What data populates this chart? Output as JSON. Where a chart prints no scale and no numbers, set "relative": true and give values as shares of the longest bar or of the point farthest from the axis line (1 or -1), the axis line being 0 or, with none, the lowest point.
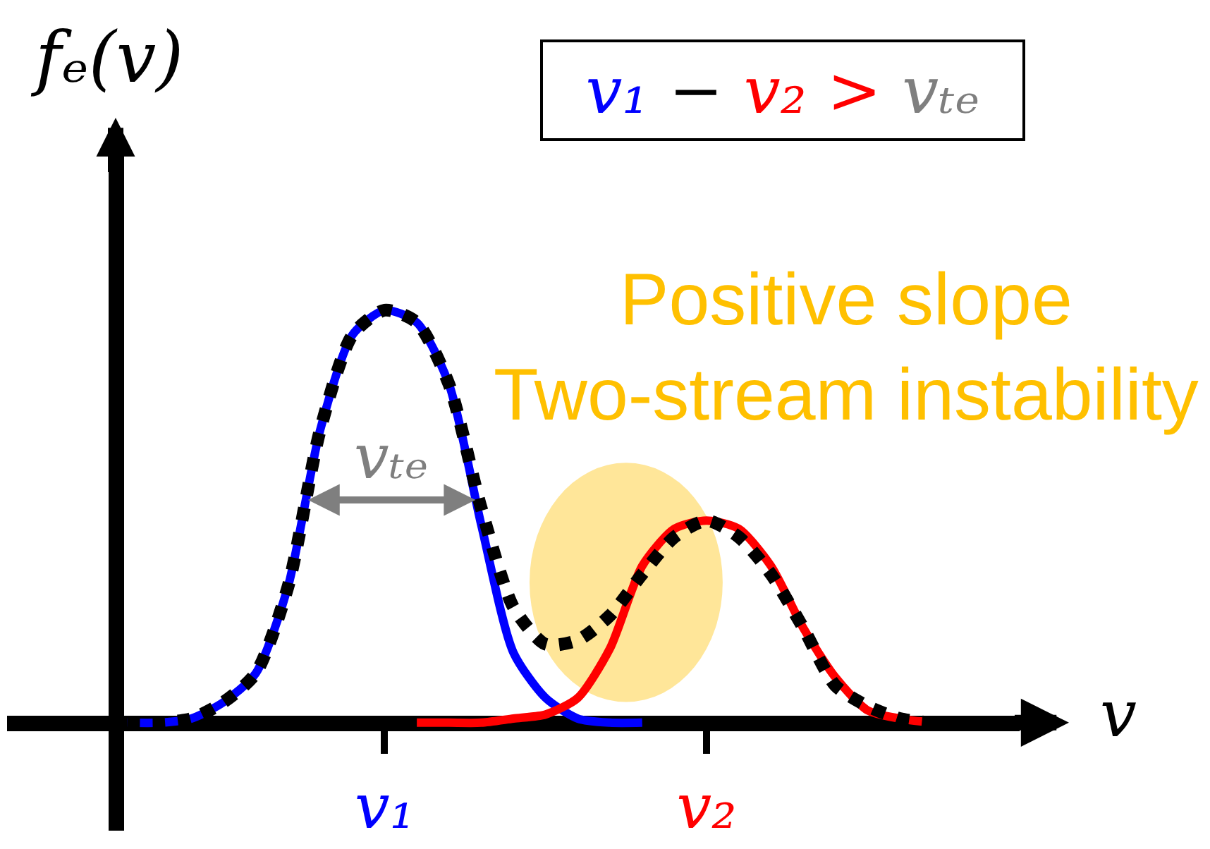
{
  "chart_data": {
    "type": "line",
    "relative": true,
    "legend": false,
    "grid": false,
    "categories": [
      null,
      null,
      null,
      null,
      null,
      null,
      null,
      null,
      "v₁",
      null,
      null,
      null,
      null,
      null,
      null,
      null,
      null,
      null,
      "v₂",
      null,
      null,
      null,
      null,
      null,
      null,
      null,
      null,
      null
    ],
    "xlabel": "v",
    "ylabel": "fₑ(v)",
    "annotations": [
      "vₜₑ",
      "v₁ − v₂ > vₜₑ",
      "Positive slope\nTwo-stream instability"
    ],
    "series": [
      {
        "color": "#0000ff",
        "values": [
          0,
          0,
          0.01,
          0.05,
          0.12,
          0.33,
          0.71,
          0.94,
          1,
          0.97,
          0.82,
          0.48,
          0.17,
          0.06,
          0.01,
          0,
          0,
          null,
          null,
          null,
          null,
          null,
          null,
          null,
          null,
          null,
          null,
          null
        ]
      },
      {
        "color": "#ff0000",
        "values": [
          null,
          null,
          null,
          null,
          null,
          null,
          null,
          null,
          null,
          0,
          0,
          0,
          0.01,
          0.02,
          0.06,
          0.18,
          0.38,
          0.47,
          0.49,
          0.47,
          0.38,
          0.23,
          0.11,
          0.03,
          0.01,
          0,
          null,
          null
        ]
      },
      {
        "color": "#000000",
        "line_style": "dotted",
        "values": [
          0,
          0,
          0.01,
          0.05,
          0.12,
          0.33,
          0.71,
          0.94,
          1,
          0.97,
          0.82,
          0.52,
          0.28,
          0.19,
          0.2,
          0.26,
          0.36,
          0.45,
          0.49,
          0.45,
          0.36,
          0.23,
          0.09,
          0.04,
          0.01,
          0,
          0,
          0
        ]
      }
    ]
  }
}
